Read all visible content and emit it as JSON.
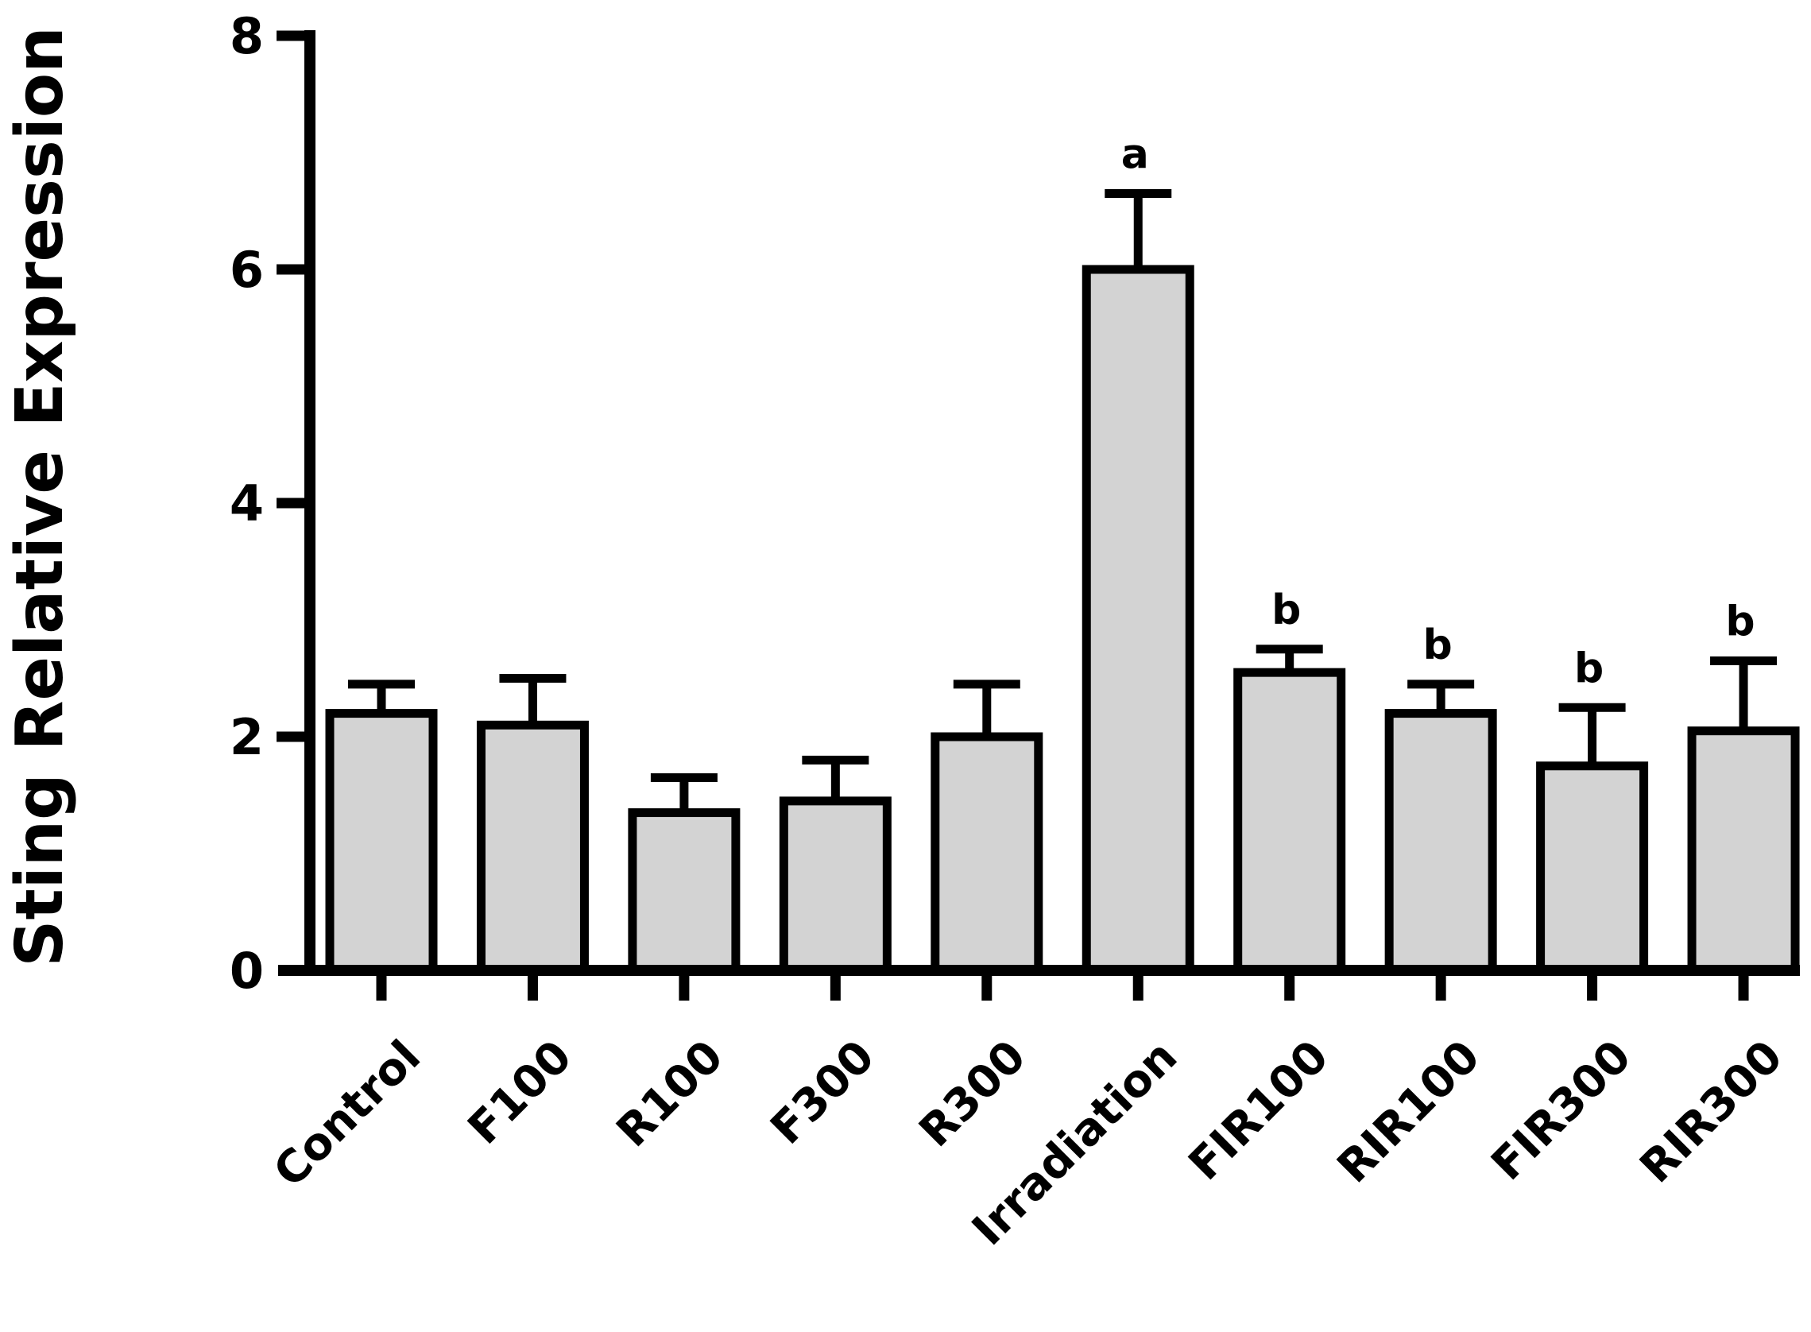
{
  "figure": {
    "kind": "scientific-bar-figure",
    "background": "#ffffff"
  },
  "chart_data": {
    "type": "bar",
    "title": "",
    "xlabel": "",
    "ylabel": "Sting Relative Expression",
    "categories": [
      "Control",
      "F100",
      "R100",
      "F300",
      "R300",
      "Irradiation",
      "FIR100",
      "RIR100",
      "FIR300",
      "RIR300"
    ],
    "values": [
      2.2,
      2.1,
      1.35,
      1.45,
      2.0,
      6.0,
      2.55,
      2.2,
      1.75,
      2.05
    ],
    "errors_plus": [
      0.25,
      0.4,
      0.3,
      0.35,
      0.45,
      0.65,
      0.2,
      0.25,
      0.5,
      0.6
    ],
    "sig_letters": [
      "",
      "",
      "",
      "",
      "",
      "a",
      "b",
      "b",
      "b",
      "b"
    ],
    "ylim": [
      0,
      8
    ],
    "yticks": [
      0,
      2,
      4,
      6,
      8
    ],
    "grid": false,
    "legend": null,
    "bar_color": "#d3d3d3",
    "bar_border_color": "#000000",
    "axis_color": "#000000",
    "sig_letter_color": "#2a2a2a"
  }
}
